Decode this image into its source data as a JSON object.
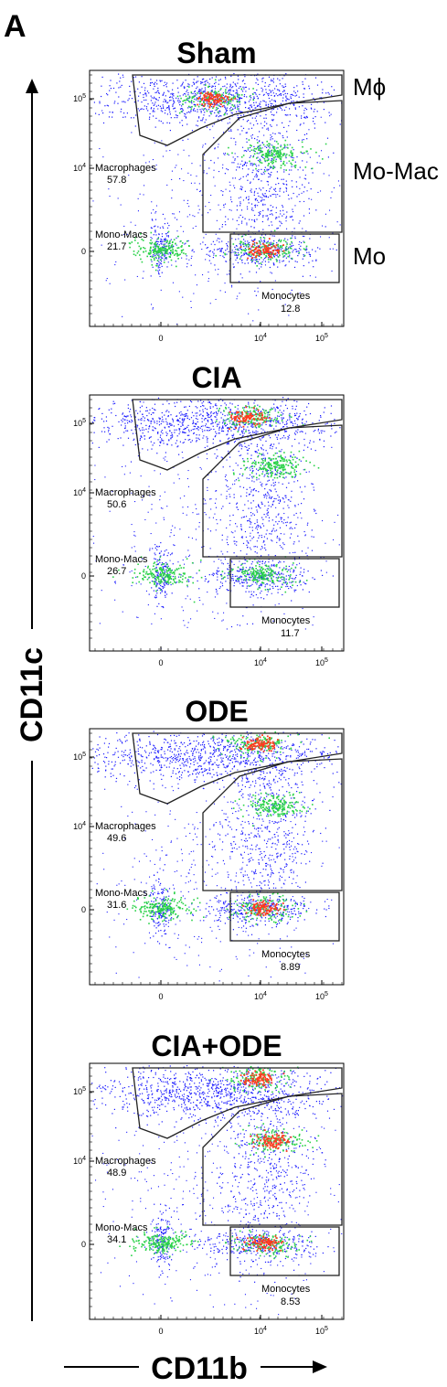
{
  "figure_label": "A",
  "axes": {
    "xlabel": "CD11b",
    "ylabel": "CD11c"
  },
  "population_labels": [
    "Mϕ",
    "Mo-Mac",
    "Mo"
  ],
  "colors": {
    "frame": "#000000",
    "gate": "#222222",
    "low": "#1a1aff",
    "mid": "#2bd24a",
    "high": "#ff3b1f"
  },
  "chart_data": [
    {
      "type": "scatter",
      "title": "Sham",
      "x_scale": "biexponential",
      "y_scale": "biexponential",
      "x_ticks": [
        "0",
        "10^4",
        "10^5"
      ],
      "y_ticks": [
        "10^5",
        "10^4",
        "0"
      ],
      "gates": [
        {
          "name": "Macrophages",
          "value": "57.8"
        },
        {
          "name": "Mono-Macs",
          "value": "21.7"
        },
        {
          "name": "Monocytes",
          "value": "12.8"
        }
      ],
      "hotspots": [
        {
          "x": 2.1,
          "y": 5.0,
          "intensity": "high"
        },
        {
          "x": 4.05,
          "y": 0.1,
          "intensity": "high"
        },
        {
          "x": 0.05,
          "y": 0.15,
          "intensity": "mid"
        },
        {
          "x": 4.2,
          "y": 4.2,
          "intensity": "mid"
        }
      ]
    },
    {
      "type": "scatter",
      "title": "CIA",
      "x_scale": "biexponential",
      "y_scale": "biexponential",
      "x_ticks": [
        "0",
        "10^4",
        "10^5"
      ],
      "y_ticks": [
        "10^5",
        "10^4",
        "0"
      ],
      "gates": [
        {
          "name": "Macrophages",
          "value": "50.6"
        },
        {
          "name": "Mono-Macs",
          "value": "26.7"
        },
        {
          "name": "Monocytes",
          "value": "11.7"
        }
      ],
      "hotspots": [
        {
          "x": 3.5,
          "y": 5.1,
          "intensity": "high"
        },
        {
          "x": 4.0,
          "y": 0.1,
          "intensity": "mid"
        },
        {
          "x": 0.05,
          "y": 0.1,
          "intensity": "mid"
        },
        {
          "x": 4.2,
          "y": 4.4,
          "intensity": "mid"
        }
      ]
    },
    {
      "type": "scatter",
      "title": "ODE",
      "x_scale": "biexponential",
      "y_scale": "biexponential",
      "x_ticks": [
        "0",
        "10^4",
        "10^5"
      ],
      "y_ticks": [
        "10^5",
        "10^4",
        "0"
      ],
      "gates": [
        {
          "name": "Macrophages",
          "value": "49.6"
        },
        {
          "name": "Mono-Macs",
          "value": "31.6"
        },
        {
          "name": "Monocytes",
          "value": "8.89"
        }
      ],
      "hotspots": [
        {
          "x": 3.9,
          "y": 5.2,
          "intensity": "high"
        },
        {
          "x": 4.05,
          "y": 0.1,
          "intensity": "high"
        },
        {
          "x": 0.05,
          "y": 0.1,
          "intensity": "mid"
        },
        {
          "x": 4.2,
          "y": 4.3,
          "intensity": "mid"
        }
      ]
    },
    {
      "type": "scatter",
      "title": "CIA+ODE",
      "x_scale": "biexponential",
      "y_scale": "biexponential",
      "x_ticks": [
        "0",
        "10^4",
        "10^5"
      ],
      "y_ticks": [
        "10^5",
        "10^4",
        "0"
      ],
      "gates": [
        {
          "name": "Macrophages",
          "value": "48.9"
        },
        {
          "name": "Mono-Macs",
          "value": "34.1"
        },
        {
          "name": "Monocytes",
          "value": "8.53"
        }
      ],
      "hotspots": [
        {
          "x": 3.9,
          "y": 5.2,
          "intensity": "high"
        },
        {
          "x": 4.05,
          "y": 0.1,
          "intensity": "high"
        },
        {
          "x": 0.05,
          "y": 0.1,
          "intensity": "mid"
        },
        {
          "x": 4.2,
          "y": 4.3,
          "intensity": "high"
        }
      ]
    }
  ]
}
